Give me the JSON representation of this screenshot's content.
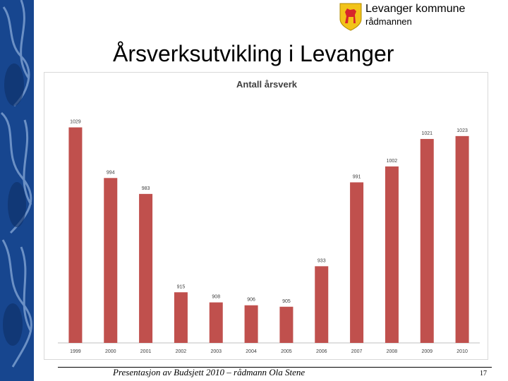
{
  "header": {
    "org_name": "Levanger kommune",
    "org_sub": "rådmannen"
  },
  "slide": {
    "title": "Årsverksutvikling i Levanger"
  },
  "footer": {
    "text": "Presentasjon av Budsjett 2010 – rådmann Ola Stene",
    "page": "17"
  },
  "colors": {
    "bar": "#c0504d",
    "strip": "#17468f",
    "logo_gold": "#f2c318",
    "logo_red": "#d7262b"
  },
  "chart_data": {
    "type": "bar",
    "title": "Antall årsverk",
    "categories": [
      "1999",
      "2000",
      "2001",
      "2002",
      "2003",
      "2004",
      "2005",
      "2006",
      "2007",
      "2008",
      "2009",
      "2010"
    ],
    "values": [
      1029,
      994,
      983,
      915,
      908,
      906,
      905,
      933,
      991,
      1002,
      1021,
      1023
    ],
    "xlabel": "",
    "ylabel": "",
    "ylim": [
      880,
      1040
    ]
  }
}
